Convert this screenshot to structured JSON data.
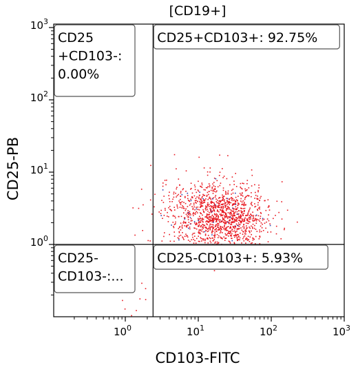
{
  "chart_data": {
    "type": "scatter",
    "title": "[CD19+]",
    "xlabel": "CD103-FITC",
    "ylabel": "CD25-PB",
    "xscale": "log",
    "yscale": "log",
    "xlim": [
      0.2,
      1000
    ],
    "ylim": [
      0.1,
      1000
    ],
    "xticks": [
      {
        "base": "10",
        "exp": "0"
      },
      {
        "base": "10",
        "exp": "1"
      },
      {
        "base": "10",
        "exp": "2"
      },
      {
        "base": "10",
        "exp": "3"
      }
    ],
    "yticks": [
      {
        "base": "10",
        "exp": "0"
      },
      {
        "base": "10",
        "exp": "1"
      },
      {
        "base": "10",
        "exp": "2"
      },
      {
        "base": "10",
        "exp": "3"
      }
    ],
    "gates": {
      "x_threshold": 2.4,
      "y_threshold": 1.0,
      "quadrants": [
        {
          "position": "top-left",
          "lines": [
            "CD25",
            "+CD103-:",
            "0.00%"
          ]
        },
        {
          "position": "top-right",
          "lines": [
            "CD25+CD103+: 92.75%"
          ]
        },
        {
          "position": "bottom-left",
          "lines": [
            "CD25-",
            "CD103-:..."
          ]
        },
        {
          "position": "bottom-right",
          "lines": [
            "CD25-CD103+: 5.93%"
          ]
        }
      ]
    },
    "points_color": "#e8141c",
    "points_secondary_color": "#2a3fb0",
    "cluster": {
      "x_center": 20,
      "y_center": 2.5,
      "count": 1400
    }
  }
}
